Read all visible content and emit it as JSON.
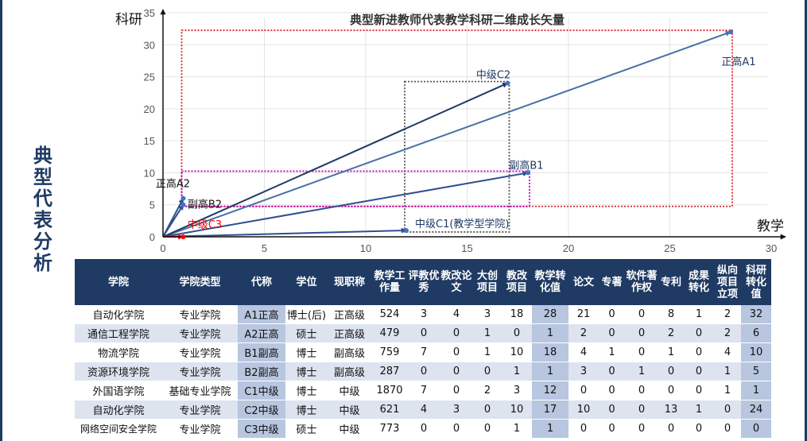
{
  "side_title": [
    "典",
    "型",
    "代",
    "表",
    "分",
    "析"
  ],
  "chart_data": {
    "type": "scatter",
    "title": "典型新进教师代表教学科研二维成长矢量",
    "xlabel": "教学",
    "ylabel": "科研",
    "xlim": [
      0,
      30
    ],
    "ylim": [
      0,
      35
    ],
    "xticks": [
      0,
      5,
      10,
      15,
      20,
      25,
      30
    ],
    "yticks": [
      0,
      5,
      10,
      15,
      20,
      25,
      30,
      35
    ],
    "grid": true,
    "points": [
      {
        "label": "正高A1",
        "x": 28,
        "y": 32,
        "color": "#4472c4"
      },
      {
        "label": "中级C2",
        "x": 17,
        "y": 24,
        "color": "#4472c4"
      },
      {
        "label": "副高B1",
        "x": 18,
        "y": 10,
        "color": "#4472c4"
      },
      {
        "label": "中级C1(教学型学院)",
        "x": 12,
        "y": 1,
        "color": "#4472c4"
      },
      {
        "label": "正高A2",
        "x": 1,
        "y": 6,
        "color": "#4472c4"
      },
      {
        "label": "副高B2",
        "x": 1,
        "y": 5,
        "color": "#4472c4"
      },
      {
        "label": "中级C3",
        "x": 1,
        "y": 0,
        "color": "#ff0000"
      }
    ],
    "arrows": [
      {
        "to": [
          28,
          32
        ],
        "color": "#4a6fa5"
      },
      {
        "to": [
          17,
          24
        ],
        "color": "#1f3a63"
      },
      {
        "to": [
          18,
          10
        ],
        "color": "#2f4f8f"
      },
      {
        "to": [
          12,
          1
        ],
        "color": "#2f4f8f"
      },
      {
        "to": [
          1,
          6
        ],
        "color": "#2f4f8f"
      },
      {
        "to": [
          1,
          5
        ],
        "color": "#2f4f8f"
      },
      {
        "to": [
          1,
          0
        ],
        "color": "#ff0000"
      }
    ],
    "boxes": [
      {
        "x": [
          1,
          28
        ],
        "y": [
          5,
          32
        ],
        "color": "#d9252a"
      },
      {
        "x": [
          12,
          17
        ],
        "y": [
          1,
          24
        ],
        "color": "#555555"
      },
      {
        "x": [
          1,
          18
        ],
        "y": [
          5,
          10
        ],
        "color": "#c000c0"
      }
    ]
  },
  "table": {
    "headers": [
      "学院",
      "学院类型",
      "代称",
      "学位",
      "现职称",
      "教学工作量",
      "评教优秀",
      "教改论文",
      "大创项目",
      "教改项目",
      "教学转化值",
      "论文",
      "专著",
      "软件著作权",
      "专利",
      "成果转化",
      "纵向项目立项",
      "科研转化值"
    ],
    "rows": [
      [
        "自动化学院",
        "专业学院",
        "A1正高",
        "博士(后)",
        "正高级",
        "524",
        "3",
        "4",
        "3",
        "18",
        "28",
        "21",
        "0",
        "0",
        "8",
        "1",
        "2",
        "32"
      ],
      [
        "通信工程学院",
        "专业学院",
        "A2正高",
        "硕士",
        "正高级",
        "479",
        "0",
        "0",
        "1",
        "0",
        "1",
        "2",
        "0",
        "0",
        "2",
        "0",
        "2",
        "6"
      ],
      [
        "物流学院",
        "专业学院",
        "B1副高",
        "博士",
        "副高级",
        "759",
        "7",
        "0",
        "1",
        "10",
        "18",
        "4",
        "1",
        "0",
        "1",
        "0",
        "4",
        "10"
      ],
      [
        "资源环境学院",
        "专业学院",
        "B2副高",
        "博士",
        "副高级",
        "287",
        "0",
        "0",
        "0",
        "1",
        "1",
        "3",
        "0",
        "1",
        "0",
        "0",
        "1",
        "5"
      ],
      [
        "外国语学院",
        "基础专业学院",
        "C1中级",
        "博士",
        "中级",
        "1870",
        "7",
        "0",
        "2",
        "3",
        "12",
        "0",
        "0",
        "0",
        "0",
        "0",
        "1",
        "1"
      ],
      [
        "自动化学院",
        "专业学院",
        "C2中级",
        "博士",
        "中级",
        "621",
        "4",
        "3",
        "0",
        "10",
        "17",
        "10",
        "0",
        "0",
        "13",
        "1",
        "0",
        "24"
      ],
      [
        "网络空间安全学院",
        "专业学院",
        "C3中级",
        "硕士",
        "中级",
        "773",
        "0",
        "0",
        "0",
        "1",
        "1",
        "0",
        "0",
        "0",
        "0",
        "0",
        "0",
        "0"
      ]
    ]
  }
}
